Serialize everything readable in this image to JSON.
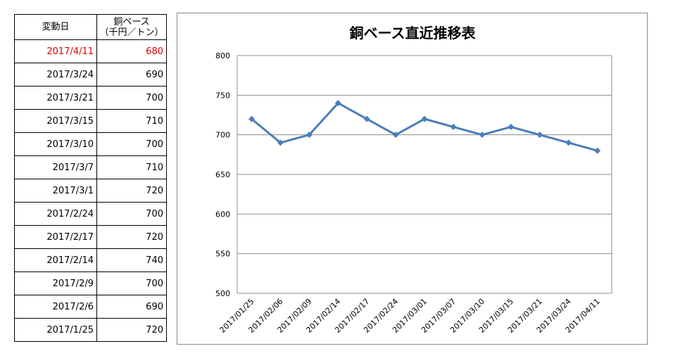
{
  "table": {
    "header_date": "変動日",
    "header_value_1": "銅ベース",
    "header_value_2": "（千円／トン）",
    "rows": [
      {
        "date": "2017/4/11",
        "value": "680"
      },
      {
        "date": "2017/3/24",
        "value": "690"
      },
      {
        "date": "2017/3/21",
        "value": "700"
      },
      {
        "date": "2017/3/15",
        "value": "710"
      },
      {
        "date": "2017/3/10",
        "value": "700"
      },
      {
        "date": "2017/3/7",
        "value": "710"
      },
      {
        "date": "2017/3/1",
        "value": "720"
      },
      {
        "date": "2017/2/24",
        "value": "700"
      },
      {
        "date": "2017/2/17",
        "value": "720"
      },
      {
        "date": "2017/2/14",
        "value": "740"
      },
      {
        "date": "2017/2/9",
        "value": "700"
      },
      {
        "date": "2017/2/6",
        "value": "690"
      },
      {
        "date": "2017/1/25",
        "value": "720"
      }
    ],
    "highlight_color": "#e00000"
  },
  "chart_data": {
    "type": "line",
    "title": "銅ベース直近推移表",
    "categories": [
      "2017/01/25",
      "2017/02/06",
      "2017/02/09",
      "2017/02/14",
      "2017/02/17",
      "2017/02/24",
      "2017/03/01",
      "2017/03/07",
      "2017/03/10",
      "2017/03/15",
      "2017/03/21",
      "2017/03/24",
      "2017/04/11"
    ],
    "series": [
      {
        "values": [
          720,
          690,
          700,
          740,
          720,
          700,
          720,
          710,
          700,
          710,
          700,
          690,
          680
        ]
      }
    ],
    "ylim": [
      500,
      800
    ],
    "yticks": [
      500,
      550,
      600,
      650,
      700,
      750,
      800
    ],
    "grid": true,
    "line_color": "#4a7ebb"
  }
}
